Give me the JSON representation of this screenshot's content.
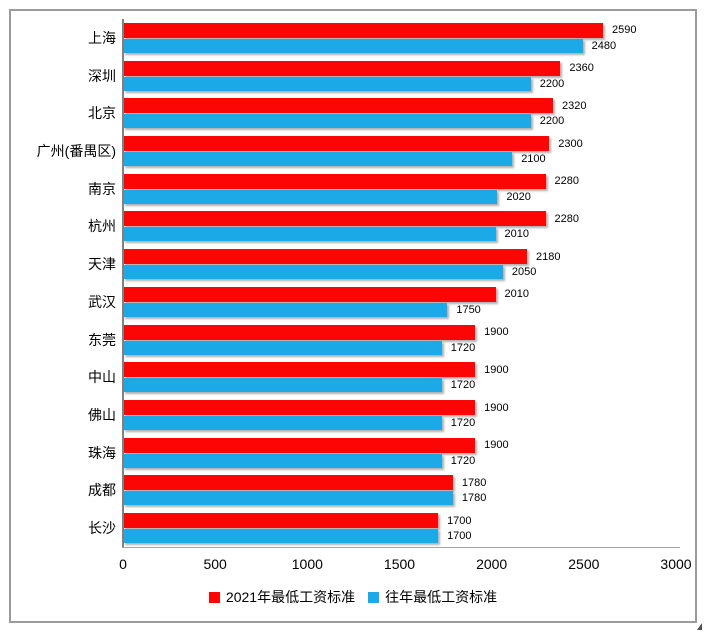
{
  "chart_data": {
    "type": "bar",
    "orientation": "horizontal",
    "title": "",
    "xlabel": "",
    "ylabel": "",
    "xlim": [
      0,
      3000
    ],
    "x_ticks": [
      0,
      500,
      1000,
      1500,
      2000,
      2500,
      3000
    ],
    "grid": false,
    "value_labels": true,
    "legend_position": "bottom",
    "categories": [
      "上海",
      "深圳",
      "北京",
      "广州(番禺区)",
      "南京",
      "杭州",
      "天津",
      "武汉",
      "东莞",
      "中山",
      "佛山",
      "珠海",
      "成都",
      "长沙"
    ],
    "series": [
      {
        "name": "2021年最低工资标准",
        "color": "#fb0505",
        "values": [
          2590,
          2360,
          2320,
          2300,
          2280,
          2280,
          2180,
          2010,
          1900,
          1900,
          1900,
          1900,
          1780,
          1700
        ]
      },
      {
        "name": "往年最低工资标准",
        "color": "#1ba9e8",
        "values": [
          2480,
          2200,
          2200,
          2100,
          2020,
          2010,
          2050,
          1750,
          1720,
          1720,
          1720,
          1720,
          1780,
          1700
        ]
      }
    ]
  }
}
